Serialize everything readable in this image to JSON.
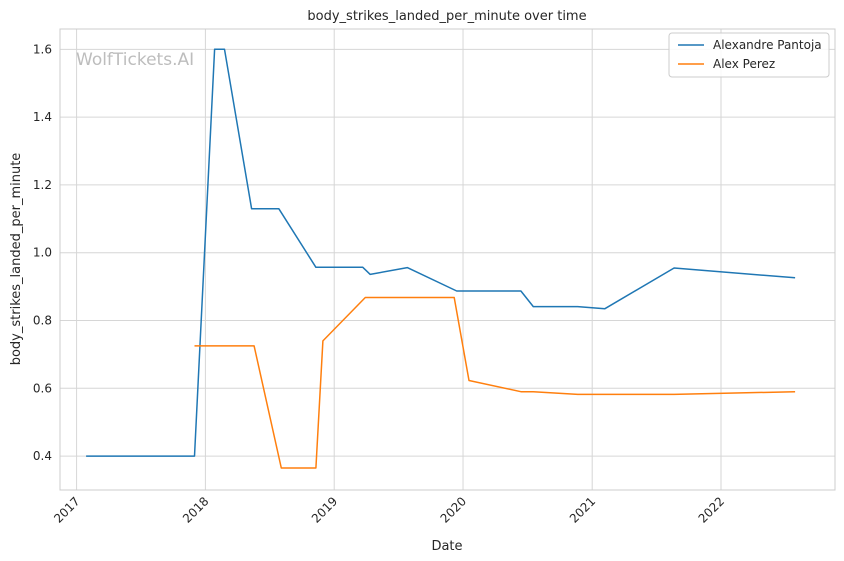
{
  "chart_data": {
    "type": "line",
    "title": "body_strikes_landed_per_minute over time",
    "xlabel": "Date",
    "ylabel": "body_strikes_landed_per_minute",
    "watermark": "WolfTickets.AI",
    "x_tick_labels": [
      "2017",
      "2018",
      "2019",
      "2020",
      "2021",
      "2022"
    ],
    "y_ticks": [
      0.4,
      0.6,
      0.8,
      1.0,
      1.2,
      1.4,
      1.6
    ],
    "y_tick_labels": [
      "0.4",
      "0.6",
      "0.8",
      "1.0",
      "1.2",
      "1.4",
      "1.6"
    ],
    "xlim": [
      "2016-11-15",
      "2022-11-20"
    ],
    "ylim": [
      0.3,
      1.66
    ],
    "grid": true,
    "legend": "top-right",
    "series": [
      {
        "name": "Alexandre Pantoja",
        "color": "#1f77b4",
        "points": [
          [
            "2017-01-28",
            0.4
          ],
          [
            "2017-12-01",
            0.4
          ],
          [
            "2018-01-27",
            1.6
          ],
          [
            "2018-02-24",
            1.6
          ],
          [
            "2018-05-12",
            1.13
          ],
          [
            "2018-07-28",
            1.13
          ],
          [
            "2018-11-10",
            0.957
          ],
          [
            "2019-03-23",
            0.957
          ],
          [
            "2019-04-13",
            0.936
          ],
          [
            "2019-07-27",
            0.956
          ],
          [
            "2019-12-14",
            0.887
          ],
          [
            "2020-06-13",
            0.887
          ],
          [
            "2020-07-18",
            0.841
          ],
          [
            "2020-11-21",
            0.841
          ],
          [
            "2021-02-06",
            0.835
          ],
          [
            "2021-08-21",
            0.955
          ],
          [
            "2022-07-30",
            0.926
          ]
        ]
      },
      {
        "name": "Alex Perez",
        "color": "#ff7f0e",
        "points": [
          [
            "2017-12-01",
            0.725
          ],
          [
            "2018-05-19",
            0.725
          ],
          [
            "2018-08-04",
            0.365
          ],
          [
            "2018-11-10",
            0.365
          ],
          [
            "2018-11-30",
            0.74
          ],
          [
            "2019-03-30",
            0.868
          ],
          [
            "2019-12-07",
            0.868
          ],
          [
            "2020-01-18",
            0.623
          ],
          [
            "2020-06-13",
            0.59
          ],
          [
            "2020-07-18",
            0.59
          ],
          [
            "2020-11-21",
            0.582
          ],
          [
            "2021-08-21",
            0.582
          ],
          [
            "2022-07-30",
            0.59
          ]
        ]
      }
    ]
  }
}
